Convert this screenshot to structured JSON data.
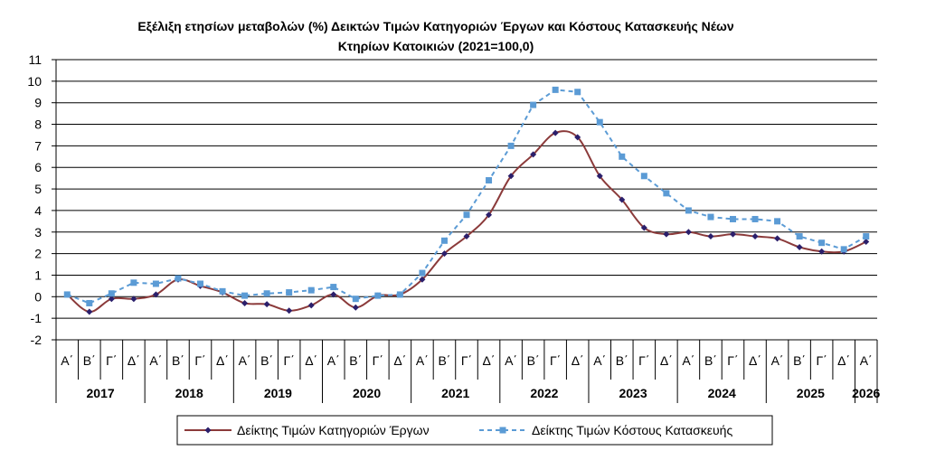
{
  "chart_data": {
    "type": "line",
    "title_line1": "Εξέλιξη ετησίων μεταβολών (%) Δεικτών Τιμών Κατηγοριών Έργων και Κόστους Κατασκευής Νέων",
    "title_line2": "Κτηρίων Κατοικιών (2021=100,0)",
    "ylim": [
      -2,
      11
    ],
    "yticks": [
      11,
      10,
      9,
      8,
      7,
      6,
      5,
      4,
      3,
      2,
      1,
      0,
      -1,
      -2
    ],
    "grid": true,
    "legend_position": "bottom",
    "quarters": [
      "Α΄",
      "Β΄",
      "Γ΄",
      "Δ΄",
      "Α΄",
      "Β΄",
      "Γ΄",
      "Δ΄",
      "Α΄",
      "Β΄",
      "Γ΄",
      "Δ΄",
      "Α΄",
      "Β΄",
      "Γ΄",
      "Δ΄",
      "Α΄",
      "Β΄",
      "Γ΄",
      "Δ΄",
      "Α΄",
      "Β΄",
      "Γ΄",
      "Δ΄",
      "Α΄",
      "Β΄",
      "Γ΄",
      "Δ΄",
      "Α΄",
      "Β΄",
      "Γ΄",
      "Δ΄",
      "Α΄",
      "Β΄",
      "Γ΄",
      "Δ΄",
      "Α΄"
    ],
    "years": [
      "2017",
      "2018",
      "2019",
      "2020",
      "2021",
      "2022",
      "2023",
      "2024",
      "2025",
      "2026"
    ],
    "series": [
      {
        "name": "Δείκτης Τιμών Κατηγοριών Έργων",
        "color": "#8b3a3a",
        "marker_color": "#2b1f6b",
        "values": [
          0.1,
          -0.7,
          -0.1,
          -0.1,
          0.1,
          0.8,
          0.5,
          0.2,
          -0.3,
          -0.35,
          -0.65,
          -0.4,
          0.1,
          -0.5,
          0.05,
          0.1,
          0.8,
          2.0,
          2.8,
          3.8,
          5.6,
          6.6,
          7.6,
          7.4,
          5.6,
          4.5,
          3.2,
          2.9,
          3.0,
          2.8,
          2.9,
          2.8,
          2.7,
          2.3,
          2.1,
          2.1,
          2.55
        ]
      },
      {
        "name": "Δείκτης Τιμών Κόστους Κατασκευής",
        "color": "#5b9bd5",
        "marker_color": "#5b9bd5",
        "values": [
          0.1,
          -0.3,
          0.15,
          0.65,
          0.6,
          0.85,
          0.6,
          0.25,
          0.05,
          0.15,
          0.2,
          0.3,
          0.45,
          -0.1,
          0.05,
          0.1,
          1.1,
          2.6,
          3.8,
          5.4,
          7.0,
          8.9,
          9.6,
          9.5,
          8.1,
          6.5,
          5.6,
          4.8,
          4.0,
          3.7,
          3.6,
          3.6,
          3.5,
          2.8,
          2.5,
          2.2,
          2.8
        ]
      }
    ]
  }
}
